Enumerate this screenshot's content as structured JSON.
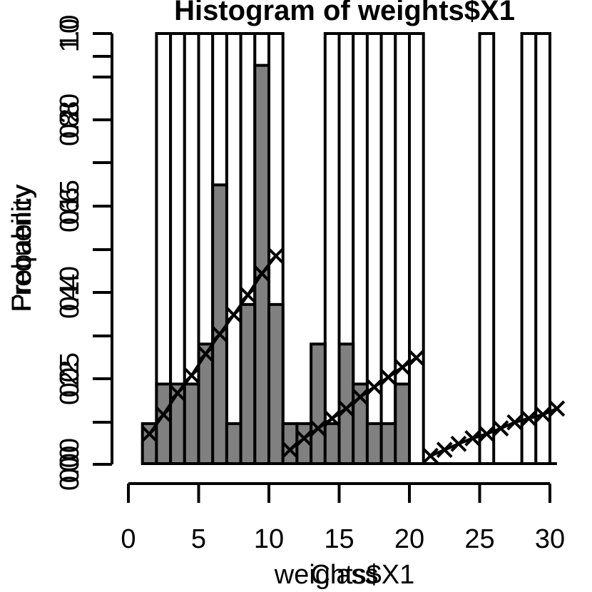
{
  "chart_data": {
    "type": "bar",
    "title": "Histogram of weights$X1",
    "xlabels": [
      "weights$X1",
      "Class"
    ],
    "ylabels": [
      "Frequency",
      "Probability"
    ],
    "x_ticks": [
      "0",
      "5",
      "10",
      "15",
      "20",
      "25",
      "30"
    ],
    "y_tick_sets": [
      [
        "0.00",
        "0.05",
        "0.10",
        "0.15",
        "0.20"
      ],
      [
        "0.0",
        "0.2",
        "0.4",
        "0.6",
        "0.8",
        "1.0"
      ],
      [
        "0",
        "2",
        "4",
        "6",
        "8",
        "10"
      ]
    ],
    "hist_bins": [
      {
        "x0": 1,
        "x1": 2,
        "value": 0.0093
      },
      {
        "x0": 2,
        "x1": 3,
        "value": 0.0185
      },
      {
        "x0": 3,
        "x1": 4,
        "value": 0.0185
      },
      {
        "x0": 4,
        "x1": 5,
        "value": 0.0185
      },
      {
        "x0": 5,
        "x1": 6,
        "value": 0.0278
      },
      {
        "x0": 6,
        "x1": 7,
        "value": 0.0648
      },
      {
        "x0": 7,
        "x1": 8,
        "value": 0.0093
      },
      {
        "x0": 8,
        "x1": 9,
        "value": 0.037
      },
      {
        "x0": 9,
        "x1": 10,
        "value": 0.0926
      },
      {
        "x0": 10,
        "x1": 11,
        "value": 0.037
      },
      {
        "x0": 11,
        "x1": 12,
        "value": 0.0093
      },
      {
        "x0": 12,
        "x1": 13,
        "value": 0.0093
      },
      {
        "x0": 13,
        "x1": 14,
        "value": 0.0278
      },
      {
        "x0": 14,
        "x1": 15,
        "value": 0.0093
      },
      {
        "x0": 15,
        "x1": 16,
        "value": 0.0278
      },
      {
        "x0": 16,
        "x1": 17,
        "value": 0.0185
      },
      {
        "x0": 17,
        "x1": 18,
        "value": 0.0093
      },
      {
        "x0": 18,
        "x1": 19,
        "value": 0.0093
      },
      {
        "x0": 19,
        "x1": 20,
        "value": 0.0185
      }
    ],
    "outline_bars": [
      {
        "x0": 2,
        "x1": 3
      },
      {
        "x0": 3,
        "x1": 4
      },
      {
        "x0": 4,
        "x1": 5
      },
      {
        "x0": 5,
        "x1": 6
      },
      {
        "x0": 6,
        "x1": 7
      },
      {
        "x0": 7,
        "x1": 8
      },
      {
        "x0": 8,
        "x1": 9
      },
      {
        "x0": 9,
        "x1": 10
      },
      {
        "x0": 10,
        "x1": 11
      },
      {
        "x0": 14,
        "x1": 15
      },
      {
        "x0": 15,
        "x1": 16
      },
      {
        "x0": 16,
        "x1": 17
      },
      {
        "x0": 17,
        "x1": 18
      },
      {
        "x0": 18,
        "x1": 19
      },
      {
        "x0": 19,
        "x1": 20
      },
      {
        "x0": 20,
        "x1": 21
      },
      {
        "x0": 25,
        "x1": 26
      },
      {
        "x0": 28,
        "x1": 29
      },
      {
        "x0": 29,
        "x1": 30
      }
    ],
    "cumulative_points": [
      {
        "x": 1,
        "y": 0.0069
      },
      {
        "x": 2,
        "y": 0.0114
      },
      {
        "x": 3,
        "y": 0.0164
      },
      {
        "x": 4,
        "y": 0.0205
      },
      {
        "x": 5,
        "y": 0.0255
      },
      {
        "x": 6,
        "y": 0.0301
      },
      {
        "x": 7,
        "y": 0.0346
      },
      {
        "x": 8,
        "y": 0.0392
      },
      {
        "x": 9,
        "y": 0.0442
      },
      {
        "x": 10,
        "y": 0.0483
      },
      {
        "x": 11,
        "y": 0.0032
      },
      {
        "x": 12,
        "y": 0.0059
      },
      {
        "x": 13,
        "y": 0.0082
      },
      {
        "x": 14,
        "y": 0.0105
      },
      {
        "x": 15,
        "y": 0.0128
      },
      {
        "x": 16,
        "y": 0.0155
      },
      {
        "x": 17,
        "y": 0.0178
      },
      {
        "x": 18,
        "y": 0.0201
      },
      {
        "x": 19,
        "y": 0.0224
      },
      {
        "x": 20,
        "y": 0.0246
      },
      {
        "x": 21,
        "y": 0.0018
      },
      {
        "x": 22,
        "y": 0.0032
      },
      {
        "x": 23,
        "y": 0.0046
      },
      {
        "x": 24,
        "y": 0.0059
      },
      {
        "x": 25,
        "y": 0.0069
      },
      {
        "x": 26,
        "y": 0.0082
      },
      {
        "x": 27,
        "y": 0.0096
      },
      {
        "x": 28,
        "y": 0.0105
      },
      {
        "x": 29,
        "y": 0.0114
      },
      {
        "x": 30,
        "y": 0.0128
      }
    ],
    "xlim": [
      0,
      30
    ],
    "ylim": [
      0,
      0.1
    ],
    "grid": false,
    "legend": "none",
    "colors": {
      "bar_fill": "#808080",
      "ink": "#000000",
      "outline_fill": "#ffffff"
    }
  }
}
